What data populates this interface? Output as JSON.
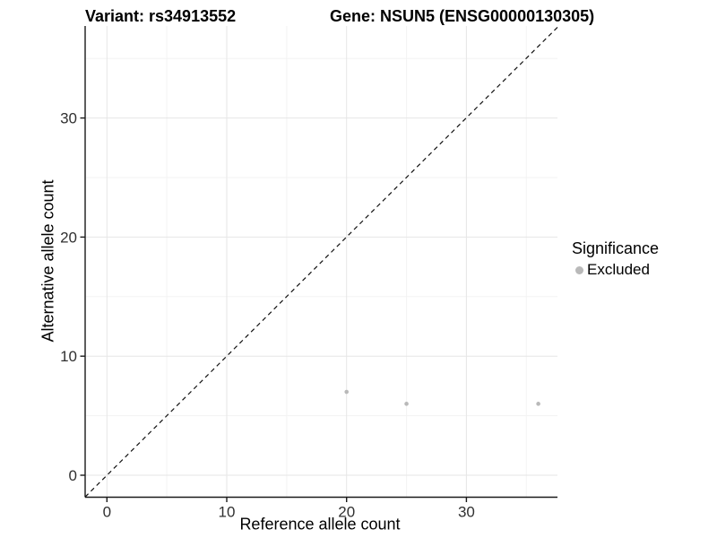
{
  "titles": {
    "variant": "Variant: rs34913552",
    "gene": "Gene: NSUN5 (ENSG00000130305)"
  },
  "chart_data": {
    "type": "scatter",
    "title": "Variant: rs34913552    Gene: NSUN5 (ENSG00000130305)",
    "xlabel": "Reference allele count",
    "ylabel": "Alternative allele count",
    "x_major_ticks": [
      0,
      10,
      20,
      30
    ],
    "x_minor_ticks": [
      5,
      15,
      25,
      35
    ],
    "y_major_ticks": [
      0,
      10,
      20,
      30
    ],
    "y_minor_ticks": [
      5,
      15,
      25,
      35
    ],
    "xlim": [
      -1.8,
      37.6
    ],
    "ylim": [
      -1.8,
      37.8
    ],
    "grid": true,
    "reference_line": {
      "kind": "identity y=x",
      "style": "dashed",
      "color": "#111111"
    },
    "series": [
      {
        "name": "Excluded",
        "color": "#b9b9b9",
        "points": [
          {
            "x": 20,
            "y": 7
          },
          {
            "x": 25,
            "y": 6
          },
          {
            "x": 36,
            "y": 6
          }
        ]
      }
    ],
    "legend": {
      "title": "Significance",
      "position": "right",
      "items": [
        {
          "label": "Excluded",
          "color": "#b9b9b9"
        }
      ]
    }
  },
  "colors": {
    "background": "#ffffff",
    "axis_line": "#1a1a1a",
    "tick_text": "#303030",
    "grid_major": "#e6e6e6",
    "grid_minor": "#f3f3f3",
    "point": "#b9b9b9",
    "dashed_line": "#111111"
  }
}
